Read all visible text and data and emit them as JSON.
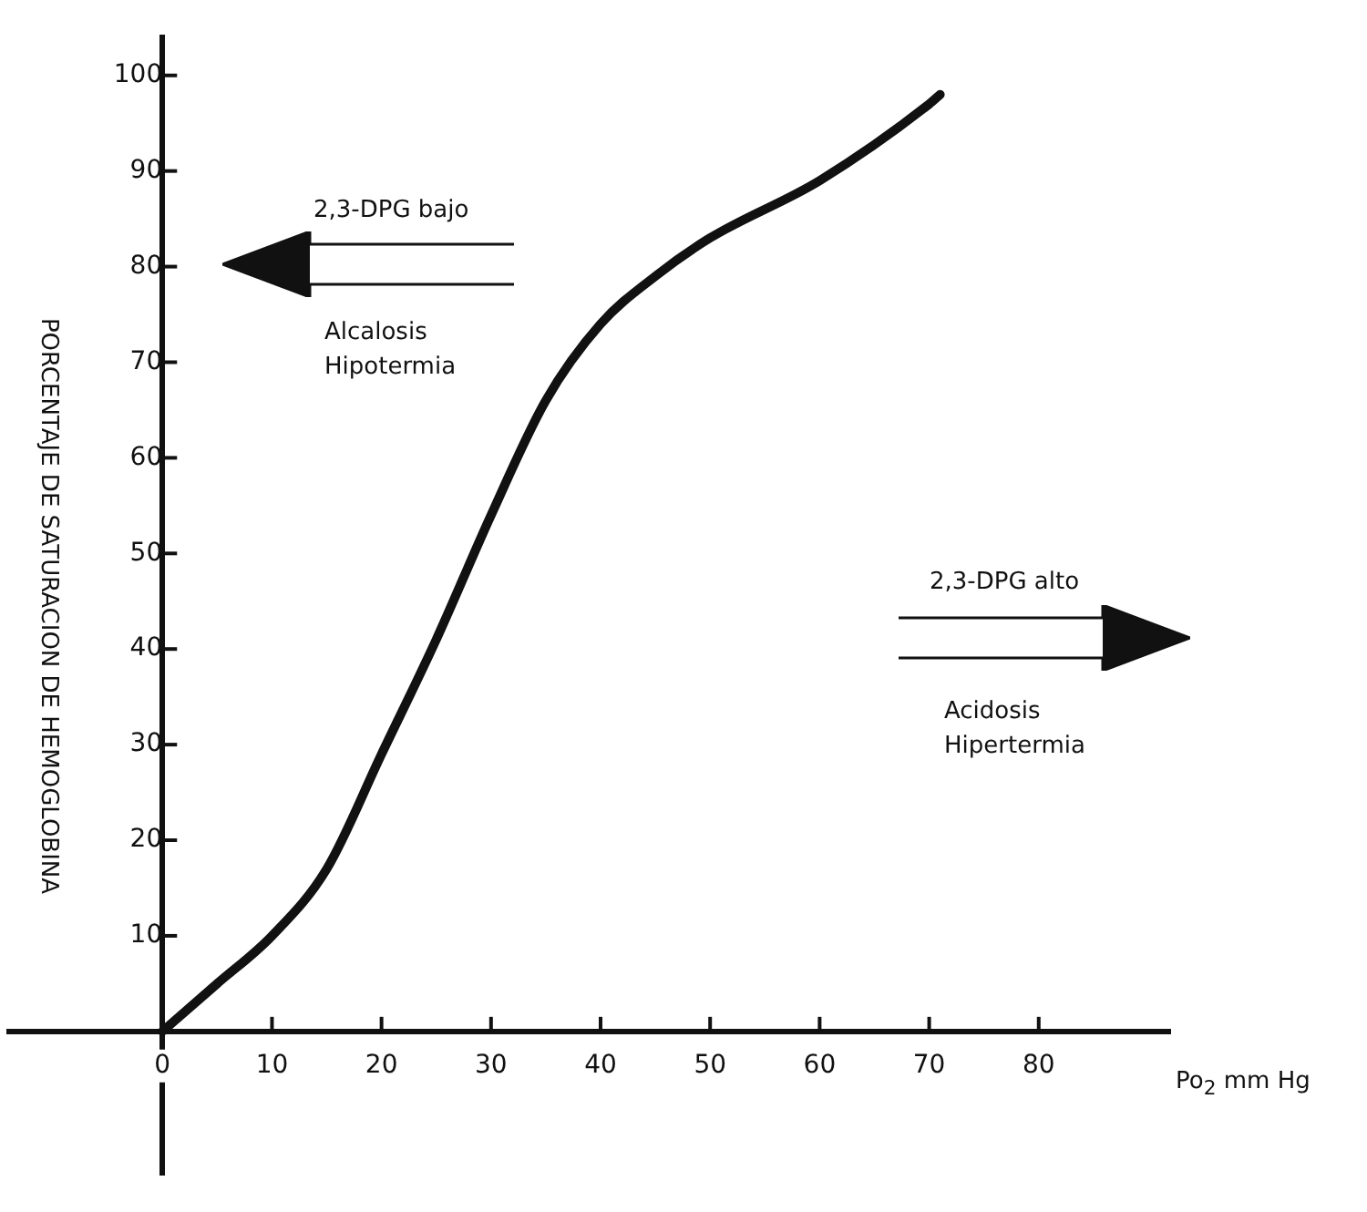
{
  "chart_data": {
    "type": "line",
    "xlabel": "Po$_{2}$ mm Hg",
    "ylabel": "PORCENTAJE DE SATURACION DE HEMOGLOBINA",
    "x": [
      0,
      5,
      10,
      15,
      20,
      25,
      30,
      35,
      40,
      45,
      50,
      60,
      70,
      71
    ],
    "series": [
      {
        "color": "#111111",
        "values": [
          0,
          5,
          10,
          17,
          29,
          41,
          54,
          66,
          74,
          79,
          83,
          89,
          97,
          98
        ]
      }
    ],
    "xlim": [
      -14,
      92
    ],
    "xticks": [
      0,
      10,
      20,
      30,
      40,
      50,
      60,
      70,
      80
    ],
    "ylim": [
      -15,
      104
    ],
    "yticks": [
      10,
      20,
      30,
      40,
      50,
      60,
      70,
      80,
      90,
      100
    ],
    "grid": false,
    "legend": false,
    "marker": "none",
    "line_style": "solid",
    "annotations": [
      "2,3-DPG bajo",
      "Alcalosis",
      "Hipotermia",
      "2,3-DPG alto",
      "Acidosis",
      "Hipertermia"
    ]
  }
}
